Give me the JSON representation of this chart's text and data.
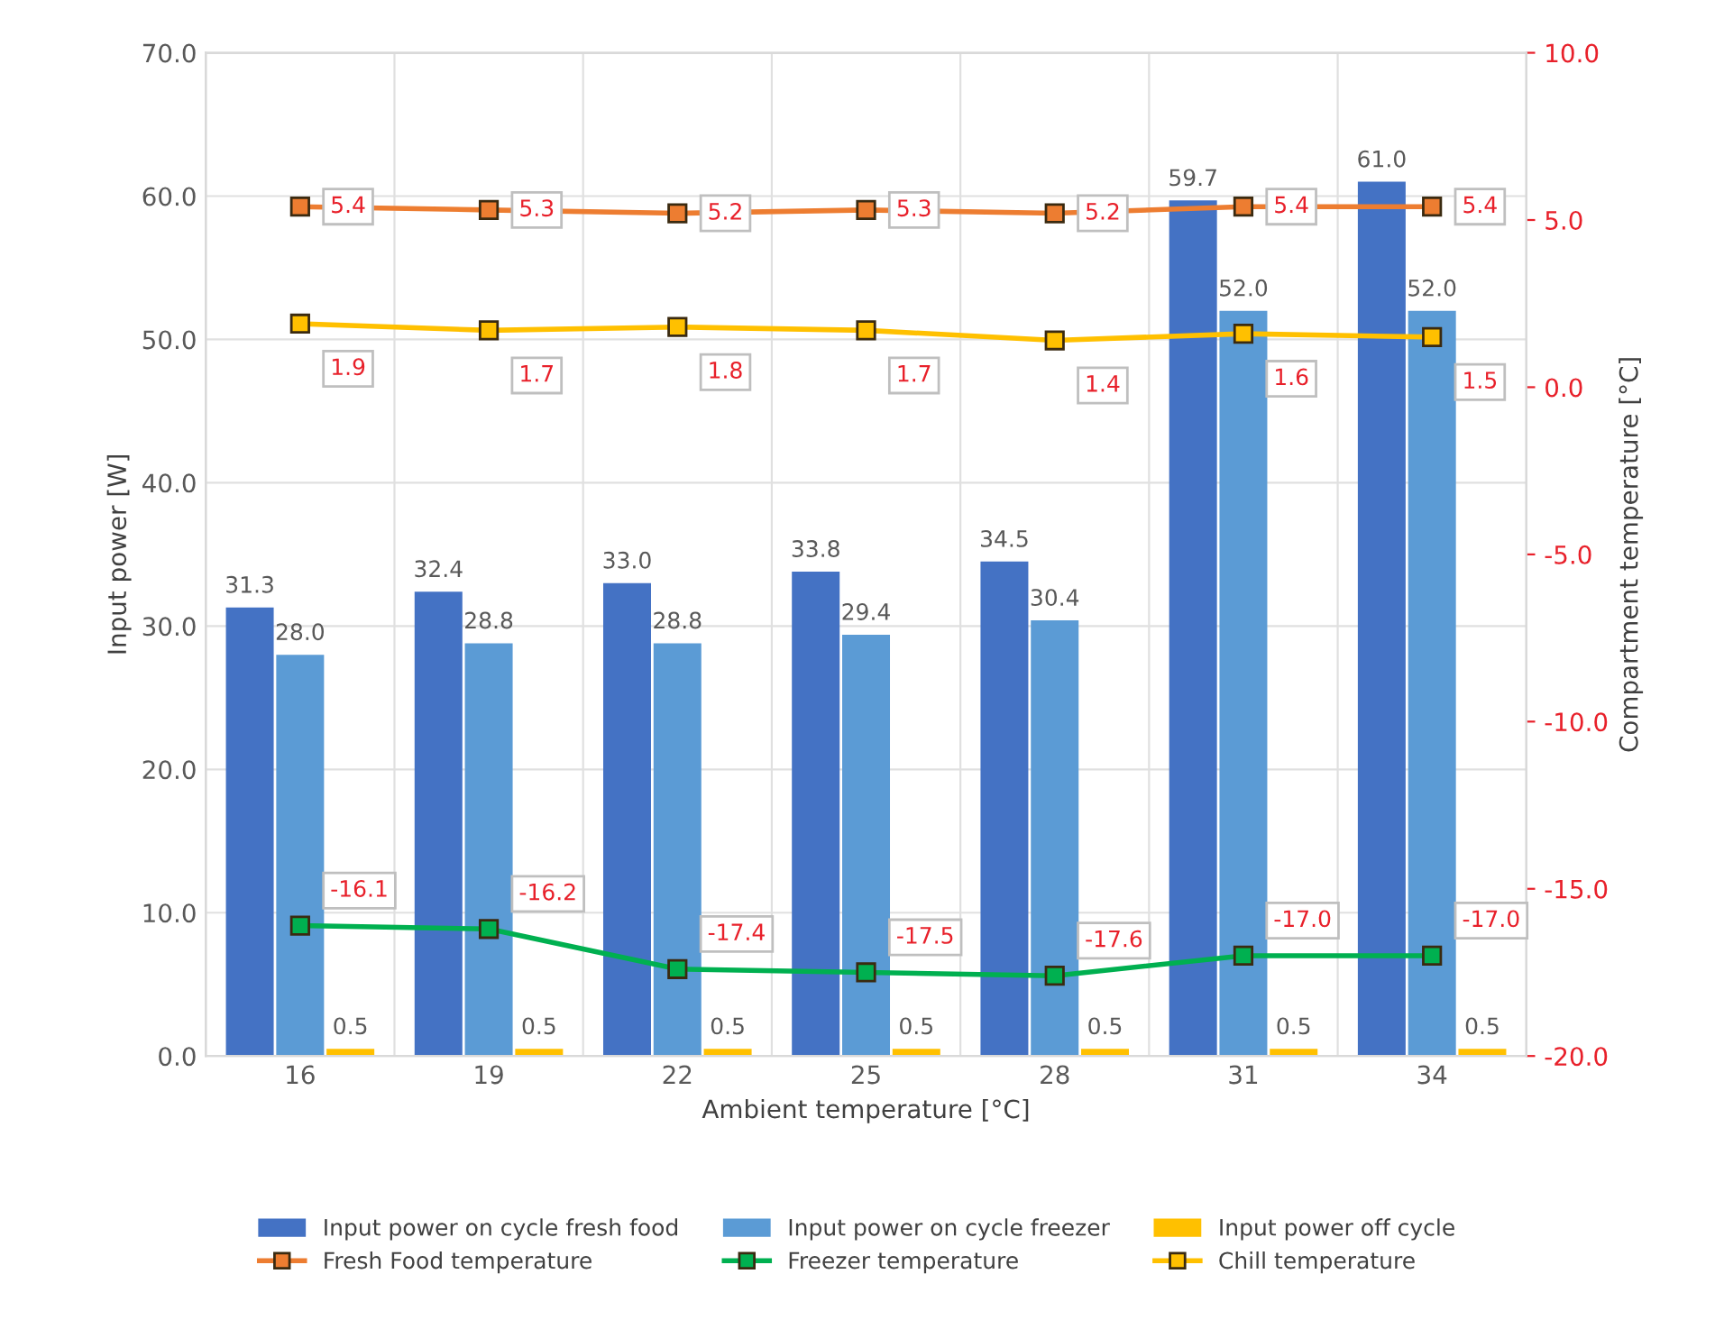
{
  "chart_data": {
    "type": "bar",
    "xlabel": "Ambient temperature [°C]",
    "ylabel": "Input power [W]",
    "y2label": "Compartment temperature [°C]",
    "categories": [
      "16",
      "19",
      "22",
      "25",
      "28",
      "31",
      "34"
    ],
    "series": [
      {
        "name": "Input power on cycle fresh food",
        "color": "#4472c4",
        "values": [
          31.3,
          32.4,
          33.0,
          33.8,
          34.5,
          59.7,
          61.0
        ],
        "value_labels": [
          "31.3",
          "32.4",
          "33.0",
          "33.8",
          "34.5",
          "59.7",
          "61.0"
        ]
      },
      {
        "name": "Input power on cycle freezer",
        "color": "#5b9bd5",
        "values": [
          28.0,
          28.8,
          28.8,
          29.4,
          30.4,
          52.0,
          52.0
        ],
        "value_labels": [
          "28.0",
          "28.8",
          "28.8",
          "29.4",
          "30.4",
          "52.0",
          "52.0"
        ]
      },
      {
        "name": "Input power off cycle",
        "color": "#ffc000",
        "values": [
          0.5,
          0.5,
          0.5,
          0.5,
          0.5,
          0.5,
          0.5
        ],
        "value_labels": [
          "0.5",
          "0.5",
          "0.5",
          "0.5",
          "0.5",
          "0.5",
          "0.5"
        ]
      },
      {
        "name": "Fresh Food temperature",
        "type": "line",
        "axis": "y2",
        "color": "#ed7d31",
        "values": [
          5.4,
          5.3,
          5.2,
          5.3,
          5.2,
          5.4,
          5.4
        ],
        "value_labels": [
          "5.4",
          "5.3",
          "5.2",
          "5.3",
          "5.2",
          "5.4",
          "5.4"
        ]
      },
      {
        "name": "Freezer temperature",
        "type": "line",
        "axis": "y2",
        "color": "#00b050",
        "values": [
          -16.1,
          -16.2,
          -17.4,
          -17.5,
          -17.6,
          -17.0,
          -17.0
        ],
        "value_labels": [
          "-16.1",
          "-16.2",
          "-17.4",
          "-17.5",
          "-17.6",
          "-17.0",
          "-17.0"
        ]
      },
      {
        "name": "Chill temperature",
        "type": "line",
        "axis": "y2",
        "color": "#ffc000",
        "values": [
          1.9,
          1.7,
          1.8,
          1.7,
          1.4,
          1.6,
          1.5
        ],
        "value_labels": [
          "1.9",
          "1.7",
          "1.8",
          "1.7",
          "1.4",
          "1.6",
          "1.5"
        ]
      }
    ],
    "ylim": [
      0,
      70
    ],
    "yticks": [
      {
        "value": 0,
        "label": "0.0"
      },
      {
        "value": 10,
        "label": "10.0"
      },
      {
        "value": 20,
        "label": "20.0"
      },
      {
        "value": 30,
        "label": "30.0"
      },
      {
        "value": 40,
        "label": "40.0"
      },
      {
        "value": 50,
        "label": "50.0"
      },
      {
        "value": 60,
        "label": "60.0"
      },
      {
        "value": 70,
        "label": "70.0"
      }
    ],
    "y2lim": [
      -20,
      10
    ],
    "y2ticks": [
      {
        "value": -20,
        "label": "-20.0"
      },
      {
        "value": -15,
        "label": "-15.0"
      },
      {
        "value": -10,
        "label": "-10.0"
      },
      {
        "value": -5,
        "label": "-5.0"
      },
      {
        "value": 0,
        "label": "0.0"
      },
      {
        "value": 5,
        "label": "5.0"
      },
      {
        "value": 10,
        "label": "10.0"
      }
    ],
    "grid": true,
    "legend": "bottom",
    "marker": "square",
    "line_style": "solid"
  }
}
